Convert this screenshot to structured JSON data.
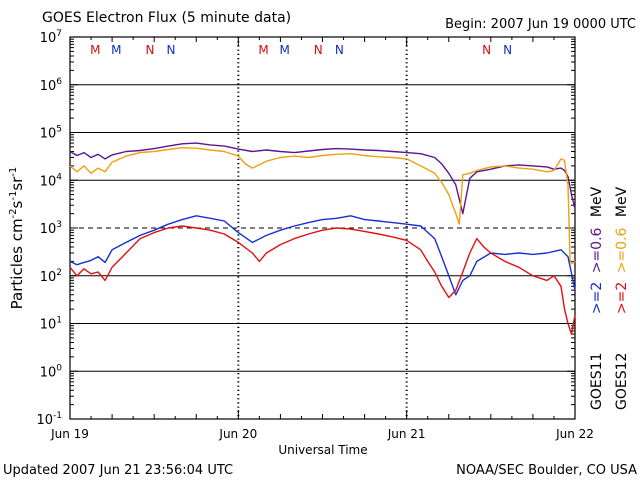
{
  "chart_data": {
    "type": "line",
    "title": "GOES Electron Flux (5 minute data)",
    "begin_label": "Begin: 2007 Jun 19 0000 UTC",
    "xlabel": "Universal Time",
    "ylabel_main": "Particles cm",
    "ylabel_exp1": "-2",
    "ylabel_s": "s",
    "ylabel_exp2": "-1",
    "ylabel_sr": "sr",
    "ylabel_exp3": "-1",
    "x_tick_labels": [
      "Jun 19",
      "Jun 20",
      "Jun 21",
      "Jun 22"
    ],
    "x_range_hours": [
      0,
      72
    ],
    "y_log_range": [
      -1,
      7
    ],
    "y_tick_exponents": [
      "-1",
      "0",
      "1",
      "2",
      "3",
      "4",
      "5",
      "6",
      "7"
    ],
    "y_tick_base": "10",
    "threshold_value": 1000,
    "markers": [
      {
        "label": "M",
        "hour": 3.6,
        "color": "#d01010"
      },
      {
        "label": "M",
        "hour": 6.6,
        "color": "#1030c0"
      },
      {
        "label": "N",
        "hour": 11.4,
        "color": "#d01010"
      },
      {
        "label": "N",
        "hour": 14.4,
        "color": "#1030c0"
      },
      {
        "label": "M",
        "hour": 27.6,
        "color": "#d01010"
      },
      {
        "label": "M",
        "hour": 30.6,
        "color": "#1030c0"
      },
      {
        "label": "N",
        "hour": 35.4,
        "color": "#d01010"
      },
      {
        "label": "N",
        "hour": 38.4,
        "color": "#1030c0"
      },
      {
        "label": "N",
        "hour": 59.4,
        "color": "#d01010"
      },
      {
        "label": "N",
        "hour": 62.4,
        "color": "#1030c0"
      }
    ],
    "legend": {
      "goes11_label": "GOES11",
      "goes12_label": "GOES12",
      "g11_ge2": ">=2",
      "g11_ge06": ">=0.6",
      "g12_ge2": ">=2",
      "g12_ge06": ">=0.6",
      "unit": "MeV"
    },
    "series": [
      {
        "name": "GOES11 >=0.6 MeV",
        "color": "#5a1590",
        "hours": [
          0,
          1,
          2,
          3,
          4,
          5,
          6,
          8,
          10,
          12,
          14,
          16,
          18,
          20,
          22,
          24,
          26,
          28,
          30,
          32,
          34,
          36,
          38,
          40,
          42,
          44,
          46,
          48,
          50,
          52,
          53,
          54,
          55,
          55.5,
          56,
          57,
          58,
          60,
          62,
          64,
          66,
          68,
          69,
          70,
          70.5,
          71,
          71.5,
          72
        ],
        "values": [
          40000,
          33000,
          38000,
          30000,
          35000,
          28000,
          34000,
          40000,
          42000,
          46000,
          52000,
          58000,
          60000,
          55000,
          52000,
          45000,
          40000,
          43000,
          40000,
          38000,
          41000,
          44000,
          46000,
          45000,
          43000,
          42000,
          40000,
          38000,
          36000,
          30000,
          22000,
          14000,
          8000,
          4000,
          2000,
          11000,
          15000,
          17000,
          20000,
          21000,
          20000,
          19000,
          17000,
          18000,
          16000,
          12000,
          5000,
          2500
        ]
      },
      {
        "name": "GOES12 >=0.6 MeV",
        "color": "#f0a010",
        "hours": [
          0,
          1,
          2,
          3,
          4,
          5,
          6,
          8,
          10,
          12,
          14,
          16,
          18,
          20,
          22,
          24,
          25,
          26,
          28,
          30,
          32,
          34,
          36,
          38,
          40,
          42,
          44,
          46,
          48,
          50,
          52,
          53,
          54,
          55,
          55.5,
          56,
          57,
          58,
          60,
          62,
          64,
          66,
          68,
          69,
          70,
          70.5,
          71,
          71.3,
          71.6,
          72
        ],
        "values": [
          20000,
          15000,
          20000,
          14000,
          18000,
          15000,
          24000,
          32000,
          38000,
          40000,
          44000,
          48000,
          47000,
          43000,
          40000,
          32000,
          22000,
          18000,
          25000,
          30000,
          32000,
          30000,
          33000,
          35000,
          36000,
          33000,
          31000,
          30000,
          28000,
          20000,
          14000,
          9000,
          5000,
          2000,
          1200,
          13000,
          14000,
          16000,
          19000,
          20000,
          18000,
          17000,
          15000,
          16000,
          28000,
          26000,
          8000,
          200,
          180,
          200
        ]
      },
      {
        "name": "GOES11 >=2 MeV",
        "color": "#1530d0",
        "hours": [
          0,
          1,
          2,
          3,
          4,
          5,
          6,
          8,
          10,
          12,
          14,
          16,
          18,
          20,
          22,
          24,
          26,
          28,
          30,
          32,
          34,
          36,
          38,
          40,
          42,
          44,
          46,
          48,
          50,
          52,
          53,
          54,
          55,
          56,
          57,
          58,
          60,
          62,
          64,
          66,
          68,
          70,
          71,
          72
        ],
        "values": [
          200,
          170,
          190,
          210,
          250,
          190,
          350,
          500,
          700,
          900,
          1200,
          1500,
          1800,
          1600,
          1400,
          800,
          500,
          700,
          900,
          1100,
          1300,
          1500,
          1600,
          1800,
          1500,
          1400,
          1300,
          1200,
          1100,
          600,
          250,
          100,
          40,
          80,
          100,
          200,
          300,
          280,
          300,
          280,
          300,
          350,
          250,
          50
        ]
      },
      {
        "name": "GOES12 >=2 MeV",
        "color": "#e01010",
        "hours": [
          0,
          1,
          2,
          3,
          4,
          5,
          6,
          8,
          10,
          12,
          14,
          16,
          18,
          20,
          22,
          24,
          26,
          27,
          28,
          30,
          32,
          34,
          36,
          38,
          40,
          42,
          44,
          46,
          48,
          50,
          51,
          52,
          53,
          54,
          55,
          56,
          57,
          58,
          59,
          60,
          62,
          64,
          66,
          68,
          69,
          70,
          70.5,
          71,
          71.5,
          72
        ],
        "values": [
          150,
          100,
          140,
          110,
          120,
          80,
          150,
          300,
          600,
          800,
          1000,
          1100,
          1000,
          900,
          750,
          500,
          300,
          200,
          300,
          450,
          600,
          750,
          900,
          1000,
          950,
          850,
          750,
          650,
          550,
          350,
          200,
          120,
          60,
          35,
          50,
          120,
          300,
          600,
          400,
          300,
          200,
          150,
          100,
          80,
          100,
          60,
          20,
          10,
          6,
          15
        ]
      }
    ]
  },
  "footer": {
    "updated": "Updated 2007 Jun 21 23:56:04 UTC",
    "source": "NOAA/SEC Boulder, CO USA"
  }
}
